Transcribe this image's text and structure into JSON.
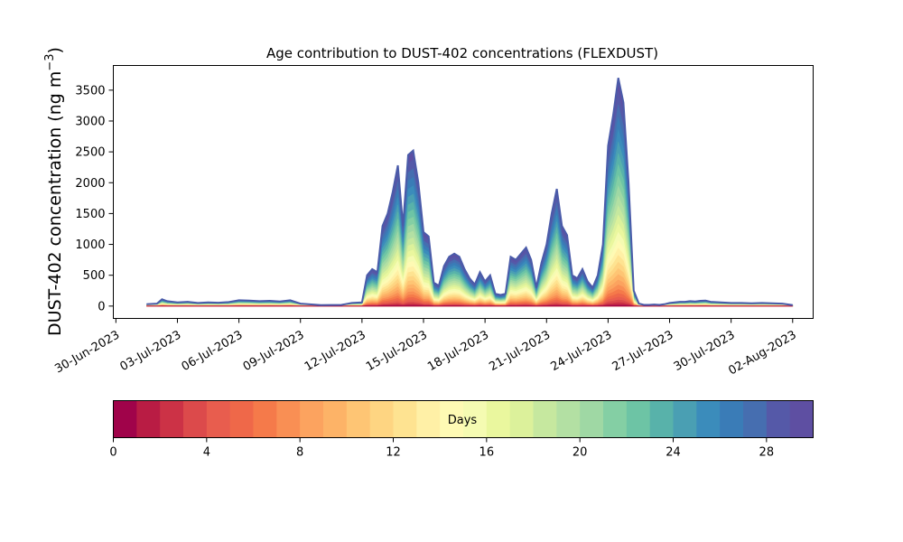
{
  "chart_data": {
    "type": "area",
    "title": "Age contribution to DUST-402 concentrations (FLEXDUST)",
    "ylabel": "DUST-402 concentration (ng m⁻³)",
    "ylabel_main": "DUST-402 concentration (ng m",
    "ylabel_sup": "−3",
    "ylabel_close": ")",
    "xlabel": "",
    "xlim": [
      "2023-06-29T21:00",
      "2023-08-03T00:00"
    ],
    "ylim": [
      -200,
      3900
    ],
    "yticks": [
      0,
      500,
      1000,
      1500,
      2000,
      2500,
      3000,
      3500
    ],
    "xticks": [
      "30-Jun-2023",
      "03-Jul-2023",
      "06-Jul-2023",
      "09-Jul-2023",
      "12-Jul-2023",
      "15-Jul-2023",
      "18-Jul-2023",
      "21-Jul-2023",
      "24-Jul-2023",
      "27-Jul-2023",
      "30-Jul-2023",
      "02-Aug-2023"
    ],
    "xtick_dates": [
      "2023-06-30",
      "2023-07-03",
      "2023-07-06",
      "2023-07-09",
      "2023-07-12",
      "2023-07-15",
      "2023-07-18",
      "2023-07-21",
      "2023-07-24",
      "2023-07-27",
      "2023-07-30",
      "2023-08-02"
    ],
    "series_total": {
      "x": [
        "2023-07-01T12:00",
        "2023-07-02T00:00",
        "2023-07-02T06:00",
        "2023-07-02T12:00",
        "2023-07-03T00:00",
        "2023-07-03T12:00",
        "2023-07-04T00:00",
        "2023-07-04T12:00",
        "2023-07-05T00:00",
        "2023-07-05T12:00",
        "2023-07-06T00:00",
        "2023-07-06T12:00",
        "2023-07-07T00:00",
        "2023-07-07T12:00",
        "2023-07-08T00:00",
        "2023-07-08T12:00",
        "2023-07-09T00:00",
        "2023-07-10T00:00",
        "2023-07-11T00:00",
        "2023-07-11T12:00",
        "2023-07-12T00:00",
        "2023-07-12T06:00",
        "2023-07-12T12:00",
        "2023-07-12T18:00",
        "2023-07-13T00:00",
        "2023-07-13T06:00",
        "2023-07-13T12:00",
        "2023-07-13T18:00",
        "2023-07-14T00:00",
        "2023-07-14T06:00",
        "2023-07-14T12:00",
        "2023-07-14T18:00",
        "2023-07-15T00:00",
        "2023-07-15T06:00",
        "2023-07-15T12:00",
        "2023-07-15T18:00",
        "2023-07-16T00:00",
        "2023-07-16T06:00",
        "2023-07-16T12:00",
        "2023-07-16T18:00",
        "2023-07-17T00:00",
        "2023-07-17T06:00",
        "2023-07-17T12:00",
        "2023-07-17T18:00",
        "2023-07-18T00:00",
        "2023-07-18T06:00",
        "2023-07-18T12:00",
        "2023-07-18T18:00",
        "2023-07-19T00:00",
        "2023-07-19T06:00",
        "2023-07-19T12:00",
        "2023-07-19T18:00",
        "2023-07-20T00:00",
        "2023-07-20T06:00",
        "2023-07-20T12:00",
        "2023-07-20T18:00",
        "2023-07-21T00:00",
        "2023-07-21T06:00",
        "2023-07-21T12:00",
        "2023-07-21T18:00",
        "2023-07-22T00:00",
        "2023-07-22T06:00",
        "2023-07-22T12:00",
        "2023-07-22T18:00",
        "2023-07-23T00:00",
        "2023-07-23T06:00",
        "2023-07-23T12:00",
        "2023-07-23T18:00",
        "2023-07-24T00:00",
        "2023-07-24T06:00",
        "2023-07-24T12:00",
        "2023-07-24T18:00",
        "2023-07-25T00:00",
        "2023-07-25T06:00",
        "2023-07-25T12:00",
        "2023-07-25T18:00",
        "2023-07-26T00:00",
        "2023-07-26T06:00",
        "2023-07-26T12:00",
        "2023-07-26T18:00",
        "2023-07-27T00:00",
        "2023-07-27T06:00",
        "2023-07-27T12:00",
        "2023-07-27T18:00",
        "2023-07-28T00:00",
        "2023-07-28T06:00",
        "2023-07-28T12:00",
        "2023-07-28T18:00",
        "2023-07-29T00:00",
        "2023-07-29T12:00",
        "2023-07-30T00:00",
        "2023-07-30T12:00",
        "2023-07-31T00:00",
        "2023-07-31T12:00",
        "2023-08-01T00:00",
        "2023-08-01T12:00",
        "2023-08-02T00:00"
      ],
      "values": [
        30,
        40,
        110,
        80,
        60,
        70,
        50,
        60,
        55,
        65,
        95,
        90,
        80,
        85,
        75,
        95,
        40,
        15,
        20,
        50,
        60,
        500,
        600,
        550,
        1300,
        1500,
        1850,
        2280,
        1300,
        2450,
        2520,
        2000,
        1200,
        1130,
        380,
        330,
        650,
        800,
        850,
        800,
        600,
        450,
        350,
        550,
        400,
        500,
        200,
        180,
        200,
        800,
        750,
        850,
        950,
        750,
        300,
        700,
        1000,
        1500,
        1900,
        1300,
        1150,
        500,
        450,
        600,
        400,
        300,
        500,
        1000,
        2600,
        3100,
        3700,
        3300,
        2000,
        250,
        40,
        20,
        20,
        25,
        20,
        30,
        50,
        60,
        70,
        70,
        80,
        75,
        85,
        90,
        70,
        60,
        50,
        50,
        45,
        50,
        45,
        40,
        15
      ]
    },
    "age_bands": 30,
    "colorbar": {
      "label": "Days",
      "min": 0,
      "max": 30,
      "ticks": [
        0,
        4,
        8,
        12,
        16,
        20,
        24,
        28
      ],
      "colors": [
        "#a0034a",
        "#b91c44",
        "#cc3246",
        "#dc4a4b",
        "#e85d4e",
        "#ef6849",
        "#f57a4a",
        "#f98f54",
        "#fca35f",
        "#fdb367",
        "#fec574",
        "#fed582",
        "#fee391",
        "#fff0a6",
        "#fefab4",
        "#f5fbb2",
        "#eaf79e",
        "#dcf19b",
        "#c6e89f",
        "#b3e0a3",
        "#9fd8a4",
        "#84cfa4",
        "#6dc4a5",
        "#58b2aa",
        "#4a9fb3",
        "#3b8cbb",
        "#3a7cb7",
        "#466eb0",
        "#5559a8",
        "#5e4fa2"
      ]
    }
  }
}
